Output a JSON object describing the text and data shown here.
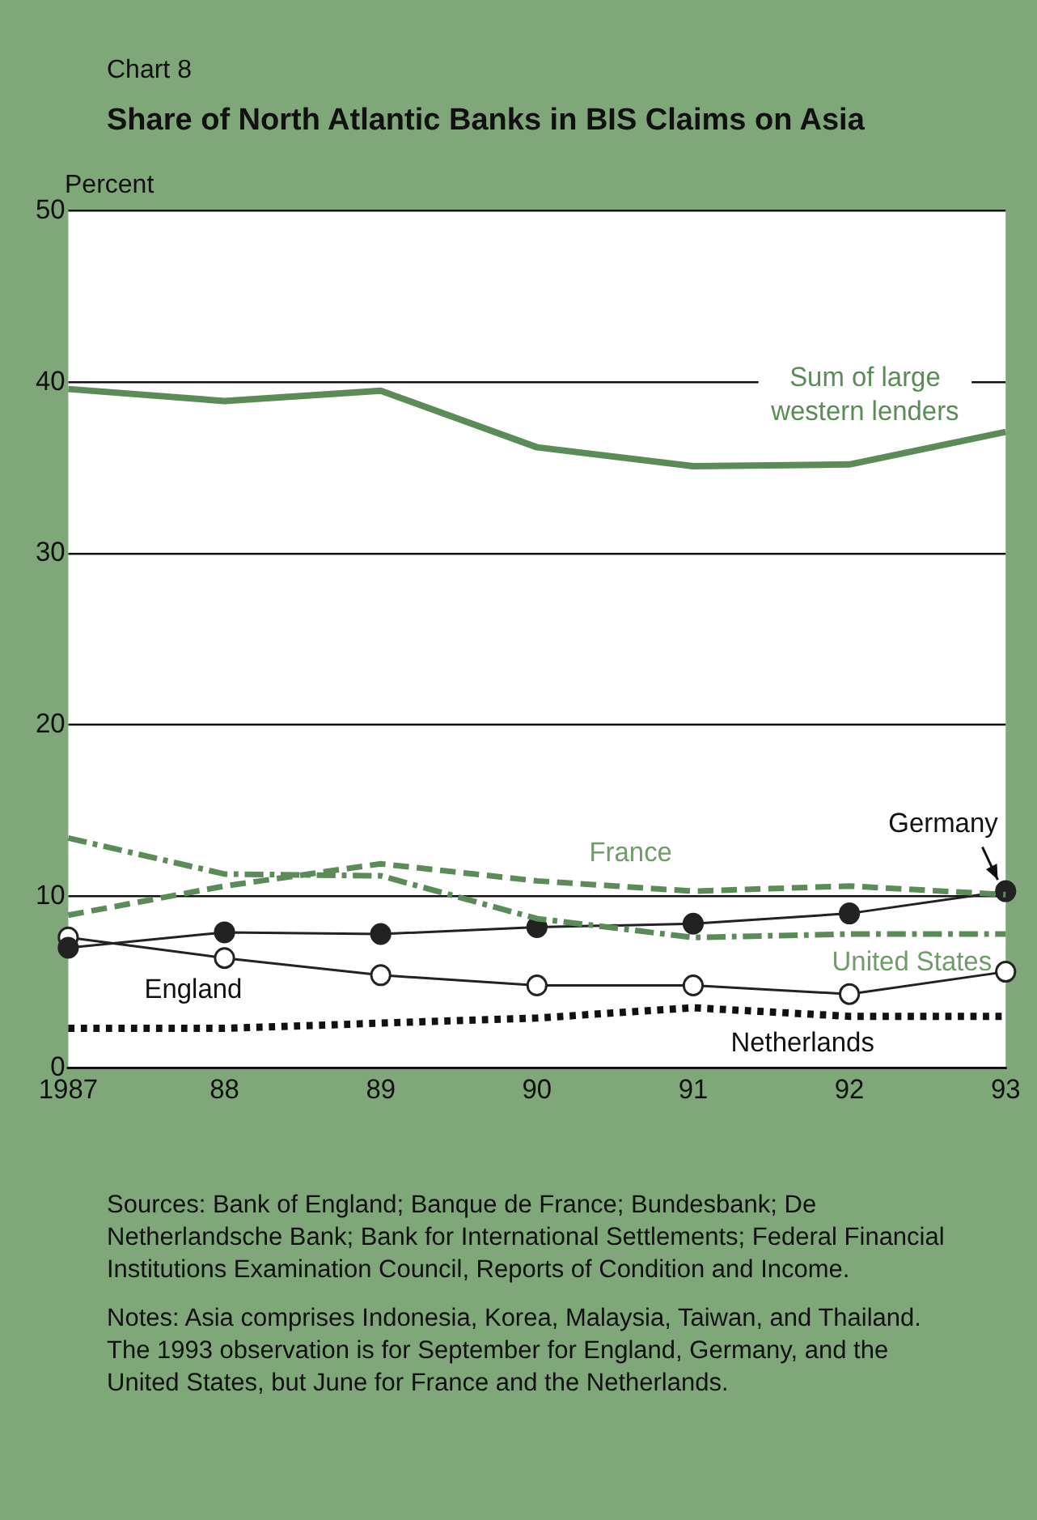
{
  "chart_data": {
    "type": "line",
    "title": "Share of North Atlantic Banks in BIS Claims on Asia",
    "subtitle": "Chart 8",
    "ylabel": "Percent",
    "categories": [
      "1987",
      "88",
      "89",
      "90",
      "91",
      "92",
      "93"
    ],
    "series": [
      {
        "name": "Sum of large western lenders",
        "color": "#5b8c58",
        "line_style": "solid",
        "marker": "none",
        "values": [
          39.6,
          38.9,
          39.5,
          36.2,
          35.1,
          35.2,
          37.1
        ]
      },
      {
        "name": "France",
        "color": "#5b8c58",
        "line_style": "dashed",
        "marker": "none",
        "values": [
          8.9,
          10.6,
          11.9,
          10.9,
          10.3,
          10.6,
          10.1
        ]
      },
      {
        "name": "United States",
        "color": "#5b8c58",
        "line_style": "dashdot",
        "marker": "none",
        "values": [
          13.4,
          11.3,
          11.2,
          8.7,
          7.6,
          7.8,
          7.8
        ]
      },
      {
        "name": "Germany",
        "color": "#222222",
        "line_style": "solid",
        "marker": "circle",
        "values": [
          7.0,
          7.9,
          7.8,
          8.2,
          8.4,
          9.0,
          10.3
        ]
      },
      {
        "name": "England",
        "color": "#222222",
        "line_style": "solid",
        "marker": "open circle",
        "values": [
          7.6,
          6.4,
          5.4,
          4.8,
          4.8,
          4.3,
          5.6
        ]
      },
      {
        "name": "Netherlands",
        "color": "#111111",
        "line_style": "dotted",
        "marker": "none",
        "values": [
          2.3,
          2.3,
          2.6,
          2.9,
          3.5,
          3.0,
          3.0
        ]
      }
    ],
    "ylim": [
      0,
      50
    ],
    "yticks": [
      0,
      10,
      20,
      30,
      40,
      50
    ],
    "grid": "y",
    "legend": false,
    "annotations": [
      "Sources:  Bank of England; Banque de France; Bundesbank; De Netherlandsche Bank; Bank for International Settlements; Federal Financial Institutions Examination Council, Reports of Condition and Income.",
      "Notes:  Asia comprises Indonesia, Korea, Malaysia, Taiwan, and Thailand. The 1993 observation is for September for England, Germany, and the United States, but June for France and the Netherlands."
    ]
  }
}
